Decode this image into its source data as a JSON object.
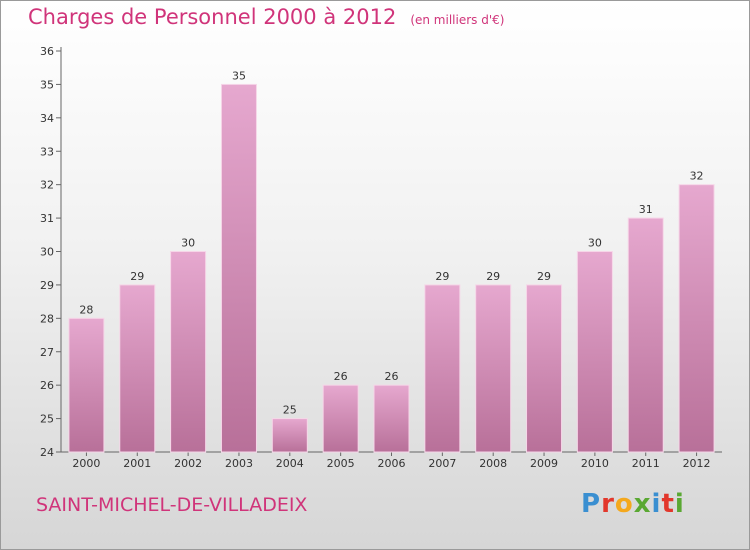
{
  "title": "Charges de Personnel 2000 à 2012",
  "unit_label": "(en milliers d'€)",
  "town": "SAINT-MICHEL-DE-VILLADEIX",
  "brand": {
    "letters": [
      "P",
      "r",
      "o",
      "x",
      "i",
      "t",
      "i"
    ],
    "colors": [
      "#3a8fd1",
      "#e2372b",
      "#f4a81d",
      "#5aa832",
      "#3a8fd1",
      "#e2372b",
      "#5aa832"
    ]
  },
  "colors": {
    "accent": "#d0347a",
    "bar_top": "#e6a8cf",
    "bar_bottom": "#b87099"
  },
  "chart_data": {
    "type": "bar",
    "categories": [
      "2000",
      "2001",
      "2002",
      "2003",
      "2004",
      "2005",
      "2006",
      "2007",
      "2008",
      "2009",
      "2010",
      "2011",
      "2012"
    ],
    "values": [
      28,
      29,
      30,
      35,
      25,
      26,
      26,
      29,
      29,
      29,
      30,
      31,
      32
    ],
    "ylim": [
      24,
      36
    ],
    "yticks": [
      24,
      25,
      26,
      27,
      28,
      29,
      30,
      31,
      32,
      33,
      34,
      35,
      36
    ],
    "grid": false,
    "legend": "none"
  }
}
